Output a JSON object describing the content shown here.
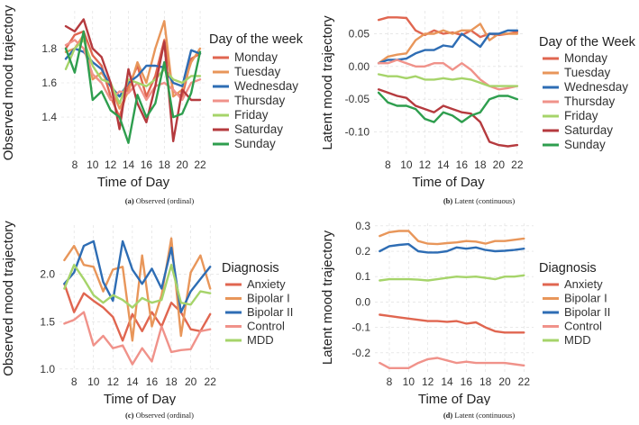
{
  "chart_data": [
    {
      "id": "a",
      "type": "line",
      "caption_label": "(a)",
      "caption_text": "Observed (ordinal)",
      "ylabel": "Observed mood trajectory",
      "xlabel": "Time of Day",
      "legend_title": "Day of the week",
      "xlim": [
        6.5,
        22.6
      ],
      "ylim": [
        1.18,
        2.02
      ],
      "xticks": [
        8,
        10,
        12,
        14,
        16,
        18,
        20,
        22
      ],
      "yticks": [
        1.4,
        1.6,
        1.8
      ],
      "ytick_labels": [
        "1.4",
        "1.6",
        "1.8"
      ],
      "x": [
        7,
        8,
        9,
        10,
        11,
        12,
        13,
        14,
        15,
        16,
        17,
        18,
        19,
        20,
        21,
        22
      ],
      "series": [
        {
          "name": "Monday",
          "color": "#E06650",
          "values": [
            1.8,
            1.88,
            1.9,
            1.76,
            1.7,
            1.52,
            1.4,
            1.58,
            1.7,
            1.52,
            1.64,
            1.85,
            1.55,
            1.52,
            1.74,
            1.77
          ]
        },
        {
          "name": "Tuesday",
          "color": "#E8965A",
          "values": [
            1.78,
            1.8,
            1.88,
            1.62,
            1.66,
            1.58,
            1.45,
            1.55,
            1.72,
            1.6,
            1.8,
            1.96,
            1.52,
            1.56,
            1.72,
            1.8
          ]
        },
        {
          "name": "Wednesday",
          "color": "#2E6DB4",
          "values": [
            1.74,
            1.8,
            1.78,
            1.72,
            1.68,
            1.58,
            1.52,
            1.6,
            1.64,
            1.7,
            1.7,
            1.69,
            1.6,
            1.58,
            1.79,
            1.77
          ]
        },
        {
          "name": "Thursday",
          "color": "#F0928A",
          "values": [
            1.82,
            1.85,
            1.8,
            1.65,
            1.6,
            1.5,
            1.55,
            1.54,
            1.6,
            1.5,
            1.58,
            1.6,
            1.56,
            1.5,
            1.6,
            1.62
          ]
        },
        {
          "name": "Friday",
          "color": "#A6D46A",
          "values": [
            1.68,
            1.8,
            1.85,
            1.7,
            1.62,
            1.6,
            1.48,
            1.62,
            1.6,
            1.58,
            1.62,
            1.68,
            1.62,
            1.6,
            1.64,
            1.64
          ]
        },
        {
          "name": "Saturday",
          "color": "#B53A3E",
          "values": [
            1.93,
            1.9,
            1.97,
            1.8,
            1.75,
            1.6,
            1.33,
            1.68,
            1.48,
            1.37,
            1.58,
            1.84,
            1.26,
            1.56,
            1.5,
            1.5
          ]
        },
        {
          "name": "Sunday",
          "color": "#2E9E4E",
          "values": [
            1.8,
            1.66,
            1.9,
            1.5,
            1.55,
            1.44,
            1.4,
            1.25,
            1.53,
            1.4,
            1.48,
            1.72,
            1.4,
            1.42,
            1.54,
            1.78
          ]
        }
      ]
    },
    {
      "id": "b",
      "type": "line",
      "caption_label": "(b)",
      "caption_text": "Latent (continuous)",
      "ylabel": "Latent mood trajectory",
      "xlabel": "Time of Day",
      "legend_title": "Day of the Week",
      "xlim": [
        6.5,
        22.6
      ],
      "ylim": [
        -0.135,
        0.085
      ],
      "xticks": [
        8,
        10,
        12,
        14,
        16,
        18,
        20,
        22
      ],
      "yticks": [
        -0.1,
        -0.05,
        0.0,
        0.05
      ],
      "ytick_labels": [
        "-0.10",
        "-0.05",
        "0.00",
        "0.05"
      ],
      "x": [
        7,
        8,
        9,
        10,
        11,
        12,
        13,
        14,
        15,
        16,
        17,
        18,
        19,
        20,
        21,
        22
      ],
      "series": [
        {
          "name": "Monday",
          "color": "#E06650",
          "values": [
            0.071,
            0.075,
            0.075,
            0.074,
            0.055,
            0.048,
            0.055,
            0.05,
            0.052,
            0.048,
            0.055,
            0.045,
            0.05,
            0.048,
            0.05,
            0.053
          ]
        },
        {
          "name": "Tuesday",
          "color": "#E8965A",
          "values": [
            0.005,
            0.015,
            0.018,
            0.02,
            0.04,
            0.05,
            0.05,
            0.055,
            0.05,
            0.055,
            0.055,
            0.065,
            0.04,
            0.05,
            0.05,
            0.05
          ]
        },
        {
          "name": "Wednesday",
          "color": "#2E6DB4",
          "values": [
            0.005,
            0.01,
            0.01,
            0.012,
            0.02,
            0.025,
            0.025,
            0.032,
            0.03,
            0.05,
            0.04,
            0.03,
            0.05,
            0.05,
            0.055,
            0.055
          ]
        },
        {
          "name": "Thursday",
          "color": "#F0928A",
          "values": [
            0.005,
            0.005,
            0.01,
            0.005,
            0.0,
            0.0,
            0.005,
            0.005,
            -0.005,
            0.005,
            -0.005,
            -0.02,
            -0.03,
            -0.035,
            -0.033,
            -0.03
          ]
        },
        {
          "name": "Friday",
          "color": "#A6D46A",
          "values": [
            -0.012,
            -0.015,
            -0.015,
            -0.018,
            -0.015,
            -0.02,
            -0.02,
            -0.018,
            -0.02,
            -0.018,
            -0.02,
            -0.025,
            -0.03,
            -0.03,
            -0.03,
            -0.03
          ]
        },
        {
          "name": "Saturday",
          "color": "#B53A3E",
          "values": [
            -0.035,
            -0.04,
            -0.045,
            -0.048,
            -0.06,
            -0.065,
            -0.07,
            -0.06,
            -0.065,
            -0.07,
            -0.072,
            -0.085,
            -0.115,
            -0.12,
            -0.122,
            -0.12
          ]
        },
        {
          "name": "Sunday",
          "color": "#2E9E4E",
          "values": [
            -0.04,
            -0.055,
            -0.06,
            -0.06,
            -0.065,
            -0.08,
            -0.085,
            -0.07,
            -0.075,
            -0.085,
            -0.075,
            -0.07,
            -0.05,
            -0.045,
            -0.045,
            -0.05
          ]
        }
      ]
    },
    {
      "id": "c",
      "type": "line",
      "caption_label": "(c)",
      "caption_text": "Observed (ordinal)",
      "ylabel": "Observed mood trajectory",
      "xlabel": "Time of Day",
      "legend_title": "Diagnosis",
      "xlim": [
        6.5,
        23
      ],
      "ylim": [
        0.97,
        2.52
      ],
      "xticks": [
        8,
        10,
        12,
        14,
        16,
        18,
        20,
        22
      ],
      "yticks": [
        1.0,
        1.5,
        2.0
      ],
      "ytick_labels": [
        "1.0",
        "1.5",
        "2.0"
      ],
      "x": [
        7,
        8,
        9,
        10,
        11,
        12,
        13,
        14,
        15,
        16,
        17,
        18,
        19,
        20,
        21,
        22
      ],
      "series": [
        {
          "name": "Anxiety",
          "color": "#E06650",
          "values": [
            1.9,
            1.6,
            1.8,
            1.72,
            1.65,
            1.55,
            1.3,
            1.58,
            1.4,
            1.6,
            1.45,
            1.7,
            1.6,
            1.42,
            1.4,
            1.58
          ]
        },
        {
          "name": "Bipolar I",
          "color": "#E8965A",
          "values": [
            2.15,
            2.3,
            2.1,
            2.08,
            1.82,
            2.05,
            2.08,
            1.3,
            2.2,
            1.45,
            1.78,
            2.38,
            1.35,
            2.02,
            2.2,
            1.85
          ]
        },
        {
          "name": "Bipolar II",
          "color": "#2E6DB4",
          "values": [
            1.9,
            2.02,
            2.3,
            2.35,
            1.92,
            1.72,
            2.35,
            2.05,
            1.9,
            2.06,
            1.85,
            2.28,
            1.6,
            1.82,
            1.95,
            2.08
          ]
        },
        {
          "name": "Control",
          "color": "#F0928A",
          "values": [
            1.48,
            1.52,
            1.6,
            1.25,
            1.35,
            1.22,
            1.25,
            1.05,
            1.22,
            1.08,
            1.45,
            1.18,
            1.2,
            1.21,
            1.4,
            1.42
          ]
        },
        {
          "name": "MDD",
          "color": "#A6D46A",
          "values": [
            1.85,
            2.1,
            1.95,
            1.78,
            1.7,
            1.78,
            1.73,
            1.65,
            1.75,
            1.7,
            1.73,
            2.1,
            1.7,
            1.68,
            1.82,
            1.8
          ]
        }
      ]
    },
    {
      "id": "d",
      "type": "line",
      "caption_label": "(d)",
      "caption_text": "Latent (continuous)",
      "ylabel": "Latent mood trajectory",
      "xlabel": "Time of Day",
      "legend_title": "Diagnosis",
      "xlim": [
        6.5,
        23
      ],
      "ylim": [
        -0.275,
        0.31
      ],
      "xticks": [
        8,
        10,
        12,
        14,
        16,
        18,
        20,
        22
      ],
      "yticks": [
        -0.2,
        -0.1,
        0.0,
        0.1,
        0.2,
        0.3
      ],
      "ytick_labels": [
        "-0.2",
        "-0.1",
        "0.0",
        "0.1",
        "0.2",
        "0.3"
      ],
      "x": [
        7,
        8,
        9,
        10,
        11,
        12,
        13,
        14,
        15,
        16,
        17,
        18,
        19,
        20,
        21,
        22
      ],
      "series": [
        {
          "name": "Anxiety",
          "color": "#E06650",
          "values": [
            -0.05,
            -0.055,
            -0.06,
            -0.065,
            -0.07,
            -0.075,
            -0.075,
            -0.078,
            -0.075,
            -0.085,
            -0.08,
            -0.1,
            -0.115,
            -0.12,
            -0.12,
            -0.12
          ]
        },
        {
          "name": "Bipolar I",
          "color": "#E8965A",
          "values": [
            0.26,
            0.275,
            0.28,
            0.28,
            0.24,
            0.23,
            0.228,
            0.232,
            0.235,
            0.24,
            0.238,
            0.23,
            0.24,
            0.24,
            0.245,
            0.25
          ]
        },
        {
          "name": "Bipolar II",
          "color": "#2E6DB4",
          "values": [
            0.2,
            0.22,
            0.225,
            0.228,
            0.2,
            0.195,
            0.195,
            0.2,
            0.215,
            0.21,
            0.215,
            0.205,
            0.2,
            0.202,
            0.205,
            0.21
          ]
        },
        {
          "name": "Control",
          "color": "#F0928A",
          "values": [
            -0.24,
            -0.26,
            -0.26,
            -0.26,
            -0.24,
            -0.225,
            -0.22,
            -0.23,
            -0.24,
            -0.235,
            -0.24,
            -0.24,
            -0.24,
            -0.24,
            -0.245,
            -0.25
          ]
        },
        {
          "name": "MDD",
          "color": "#A6D46A",
          "values": [
            0.085,
            0.09,
            0.09,
            0.09,
            0.088,
            0.085,
            0.09,
            0.095,
            0.1,
            0.098,
            0.1,
            0.095,
            0.09,
            0.1,
            0.1,
            0.105
          ]
        }
      ]
    }
  ]
}
